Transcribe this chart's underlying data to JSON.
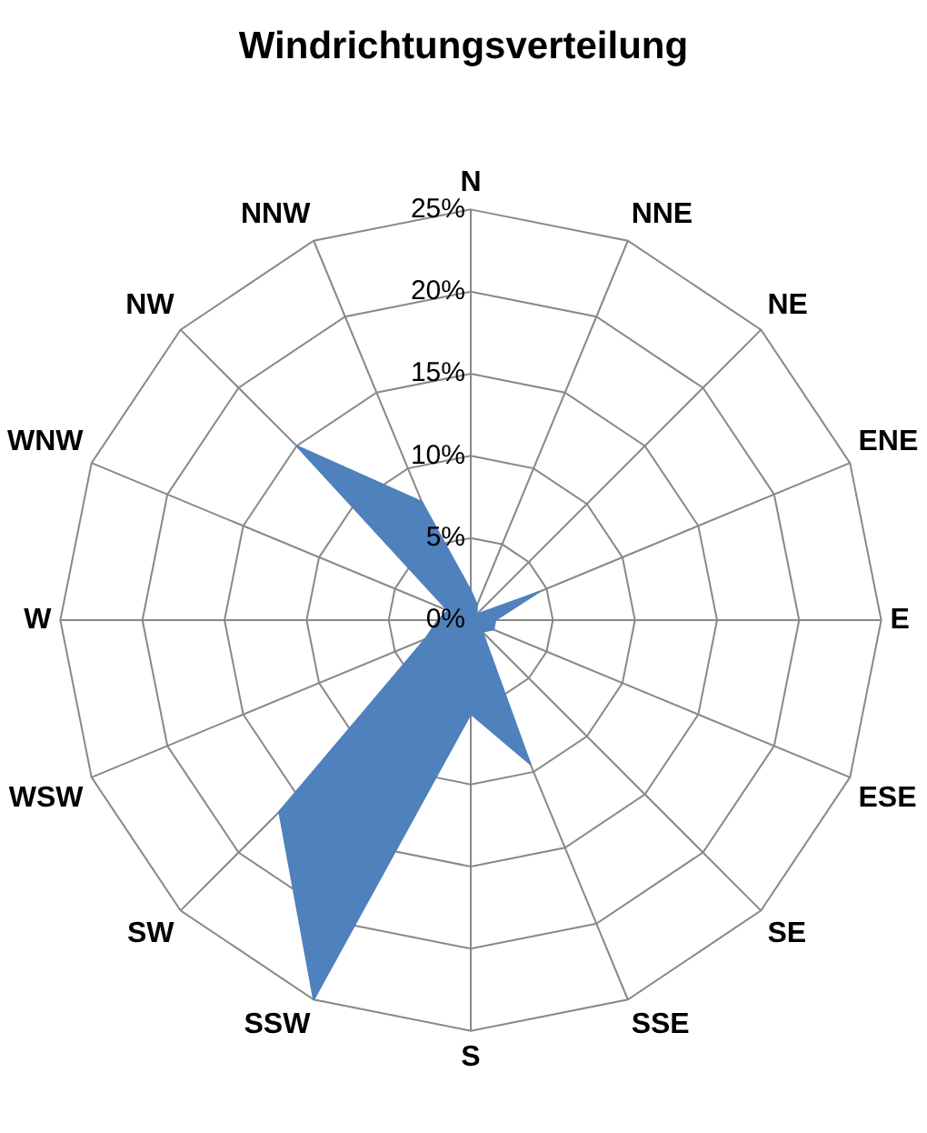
{
  "chart_data": {
    "type": "radar",
    "title": "Windrichtungsverteilung",
    "categories": [
      "N",
      "NNE",
      "NE",
      "ENE",
      "E",
      "ESE",
      "SE",
      "SSE",
      "S",
      "SSW",
      "SW",
      "WSW",
      "W",
      "WNW",
      "NW",
      "NNW"
    ],
    "series": [
      {
        "color": "#4f81bd",
        "values": [
          1.8,
          1,
          0.5,
          4.5,
          1.5,
          1.5,
          1,
          9.5,
          5.7,
          25,
          16.5,
          3,
          2,
          1.5,
          15,
          7.8
        ]
      }
    ],
    "ylim": [
      0,
      25
    ],
    "yticks": [
      {
        "value": 0,
        "label": "0%"
      },
      {
        "value": 5,
        "label": "5%"
      },
      {
        "value": 10,
        "label": "10%"
      },
      {
        "value": 15,
        "label": "15%"
      },
      {
        "value": 20,
        "label": "20%"
      },
      {
        "value": 25,
        "label": "25%"
      }
    ],
    "grid": true,
    "legend": false
  }
}
